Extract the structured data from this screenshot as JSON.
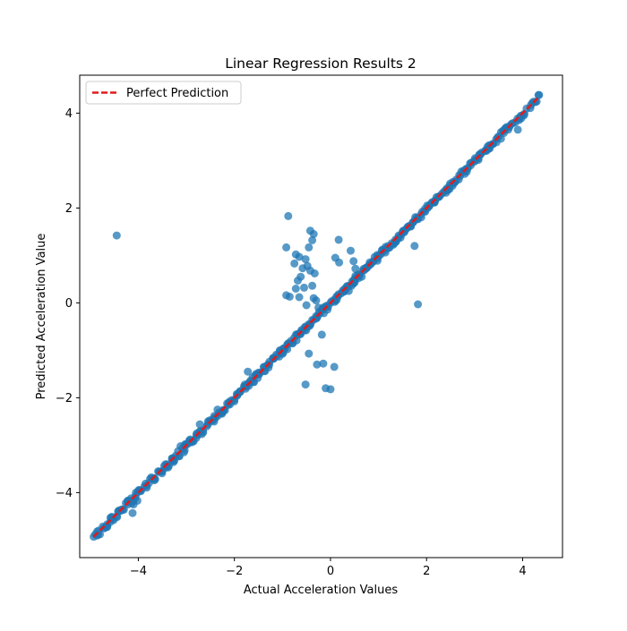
{
  "chart_data": {
    "type": "scatter",
    "title": "Linear Regression Results 2",
    "xlabel": "Actual Acceleration Values",
    "ylabel": "Predicted Acceleration Value",
    "xlim": [
      -5.22,
      4.83
    ],
    "ylim": [
      -5.37,
      4.8
    ],
    "xticks": [
      -4,
      -2,
      0,
      2,
      4
    ],
    "yticks": [
      -4,
      -2,
      0,
      2,
      4
    ],
    "xtick_labels": [
      "−4",
      "−2",
      "0",
      "2",
      "4"
    ],
    "ytick_labels": [
      "−4",
      "−2",
      "0",
      "2",
      "4"
    ],
    "grid": false,
    "legend": {
      "position": "upper-left",
      "entries": [
        {
          "label": "Perfect Prediction",
          "style": "dashed-line",
          "color": "#e31a1c"
        }
      ]
    },
    "reference_line": {
      "name": "Perfect Prediction",
      "x": [
        -4.93,
        4.33
      ],
      "y": [
        -4.93,
        4.33
      ],
      "color": "#e31a1c",
      "style": "dashed"
    },
    "marker_color": "#1f77b4",
    "marker_alpha": 0.75,
    "main_trend": {
      "x_from": -4.93,
      "x_to": 4.33,
      "approx_slope": 1.0,
      "approx_intercept": -0.02
    },
    "points": [
      [
        -4.93,
        -4.93
      ],
      [
        -4.65,
        -4.67
      ],
      [
        -4.58,
        -4.53
      ],
      [
        -4.45,
        -4.5
      ],
      [
        -4.42,
        -4.4
      ],
      [
        -4.3,
        -4.36
      ],
      [
        -4.22,
        -4.17
      ],
      [
        -4.15,
        -4.12
      ],
      [
        -4.1,
        -4.25
      ],
      [
        -4.05,
        -4.0
      ],
      [
        -4.12,
        -4.43
      ],
      [
        -4.02,
        -4.17
      ],
      [
        -3.95,
        -3.97
      ],
      [
        -3.73,
        -3.68
      ],
      [
        -3.65,
        -3.72
      ],
      [
        -3.5,
        -3.55
      ],
      [
        -3.43,
        -3.4
      ],
      [
        -3.38,
        -3.47
      ],
      [
        -3.3,
        -3.28
      ],
      [
        -3.22,
        -3.22
      ],
      [
        -3.12,
        -3.02
      ],
      [
        -3.05,
        -3.15
      ],
      [
        -2.98,
        -2.98
      ],
      [
        -2.92,
        -2.88
      ],
      [
        -2.85,
        -2.92
      ],
      [
        -2.78,
        -2.75
      ],
      [
        -2.72,
        -2.56
      ],
      [
        -2.65,
        -2.73
      ],
      [
        -2.55,
        -2.5
      ],
      [
        -2.45,
        -2.48
      ],
      [
        -2.35,
        -2.25
      ],
      [
        -2.25,
        -2.3
      ],
      [
        -2.15,
        -2.12
      ],
      [
        -2.05,
        -2.05
      ],
      [
        -1.95,
        -1.92
      ],
      [
        -1.88,
        -1.86
      ],
      [
        -1.78,
        -1.72
      ],
      [
        -1.7,
        -1.75
      ],
      [
        -1.62,
        -1.57
      ],
      [
        -1.55,
        -1.5
      ],
      [
        -1.48,
        -1.5
      ],
      [
        -1.38,
        -1.35
      ],
      [
        -1.3,
        -1.3
      ],
      [
        -1.2,
        -1.17
      ],
      [
        -1.12,
        -1.12
      ],
      [
        -1.05,
        -1.0
      ],
      [
        -0.98,
        -0.96
      ],
      [
        -0.9,
        -0.88
      ],
      [
        -0.82,
        -0.8
      ],
      [
        -0.75,
        -0.73
      ],
      [
        -0.68,
        -0.66
      ],
      [
        -0.6,
        -0.57
      ],
      [
        -0.52,
        -0.5
      ],
      [
        -0.45,
        -0.45
      ],
      [
        -0.38,
        -0.36
      ],
      [
        -0.3,
        -0.28
      ],
      [
        -0.22,
        -0.22
      ],
      [
        -0.15,
        -0.14
      ],
      [
        -0.08,
        -0.06
      ],
      [
        0.0,
        0.0
      ],
      [
        0.08,
        0.07
      ],
      [
        0.15,
        0.13
      ],
      [
        0.22,
        0.2
      ],
      [
        0.3,
        0.3
      ],
      [
        0.38,
        0.36
      ],
      [
        0.45,
        0.45
      ],
      [
        0.52,
        0.5
      ],
      [
        0.6,
        0.58
      ],
      [
        0.68,
        0.68
      ],
      [
        0.75,
        0.73
      ],
      [
        0.82,
        0.8
      ],
      [
        0.9,
        0.88
      ],
      [
        0.98,
        0.98
      ],
      [
        1.05,
        1.03
      ],
      [
        1.12,
        1.1
      ],
      [
        1.2,
        1.2
      ],
      [
        1.28,
        1.26
      ],
      [
        1.35,
        1.33
      ],
      [
        1.42,
        1.42
      ],
      [
        1.5,
        1.5
      ],
      [
        1.58,
        1.56
      ],
      [
        1.65,
        1.63
      ],
      [
        1.72,
        1.7
      ],
      [
        1.8,
        1.8
      ],
      [
        1.88,
        1.86
      ],
      [
        1.95,
        1.93
      ],
      [
        2.02,
        2.0
      ],
      [
        2.1,
        2.1
      ],
      [
        2.18,
        2.16
      ],
      [
        2.25,
        2.23
      ],
      [
        2.32,
        2.3
      ],
      [
        2.4,
        2.38
      ],
      [
        2.48,
        2.47
      ],
      [
        2.55,
        2.55
      ],
      [
        2.62,
        2.6
      ],
      [
        2.7,
        2.68
      ],
      [
        2.78,
        2.77
      ],
      [
        2.85,
        2.83
      ],
      [
        2.92,
        2.9
      ],
      [
        3.0,
        2.98
      ],
      [
        3.08,
        3.05
      ],
      [
        3.15,
        3.17
      ],
      [
        3.22,
        3.2
      ],
      [
        3.3,
        3.32
      ],
      [
        3.45,
        3.45
      ],
      [
        3.55,
        3.6
      ],
      [
        3.65,
        3.67
      ],
      [
        3.7,
        3.65
      ],
      [
        3.9,
        3.65
      ],
      [
        4.33,
        4.38
      ],
      [
        -4.45,
        1.42
      ],
      [
        -0.88,
        1.83
      ],
      [
        -0.42,
        1.52
      ],
      [
        -0.35,
        1.45
      ],
      [
        -0.38,
        1.32
      ],
      [
        0.17,
        1.33
      ],
      [
        -0.92,
        1.17
      ],
      [
        -0.45,
        1.17
      ],
      [
        -0.72,
        1.02
      ],
      [
        -0.65,
        0.97
      ],
      [
        -0.75,
        0.83
      ],
      [
        -0.58,
        0.73
      ],
      [
        -0.52,
        0.92
      ],
      [
        -0.48,
        0.78
      ],
      [
        -0.42,
        0.68
      ],
      [
        -0.62,
        0.55
      ],
      [
        -0.68,
        0.47
      ],
      [
        -0.33,
        0.62
      ],
      [
        -0.38,
        0.36
      ],
      [
        -0.55,
        0.32
      ],
      [
        -0.72,
        0.3
      ],
      [
        -0.92,
        0.16
      ],
      [
        -0.85,
        0.13
      ],
      [
        -0.65,
        0.12
      ],
      [
        -0.35,
        0.1
      ],
      [
        -0.5,
        -0.05
      ],
      [
        -0.3,
        0.05
      ],
      [
        -0.25,
        -0.1
      ],
      [
        0.1,
        0.95
      ],
      [
        0.18,
        0.85
      ],
      [
        0.42,
        1.1
      ],
      [
        0.48,
        0.88
      ],
      [
        0.52,
        0.72
      ],
      [
        0.58,
        0.6
      ],
      [
        0.65,
        0.55
      ],
      [
        0.48,
        0.48
      ],
      [
        0.38,
        0.25
      ],
      [
        1.75,
        1.2
      ],
      [
        1.82,
        -0.03
      ],
      [
        -0.18,
        -0.67
      ],
      [
        -0.45,
        -1.07
      ],
      [
        -0.28,
        -1.3
      ],
      [
        -0.15,
        -1.28
      ],
      [
        -0.52,
        -1.72
      ],
      [
        -0.1,
        -1.8
      ],
      [
        0.0,
        -1.82
      ],
      [
        0.08,
        -1.35
      ],
      [
        -1.72,
        -1.45
      ],
      [
        -0.95,
        -0.96
      ]
    ]
  }
}
